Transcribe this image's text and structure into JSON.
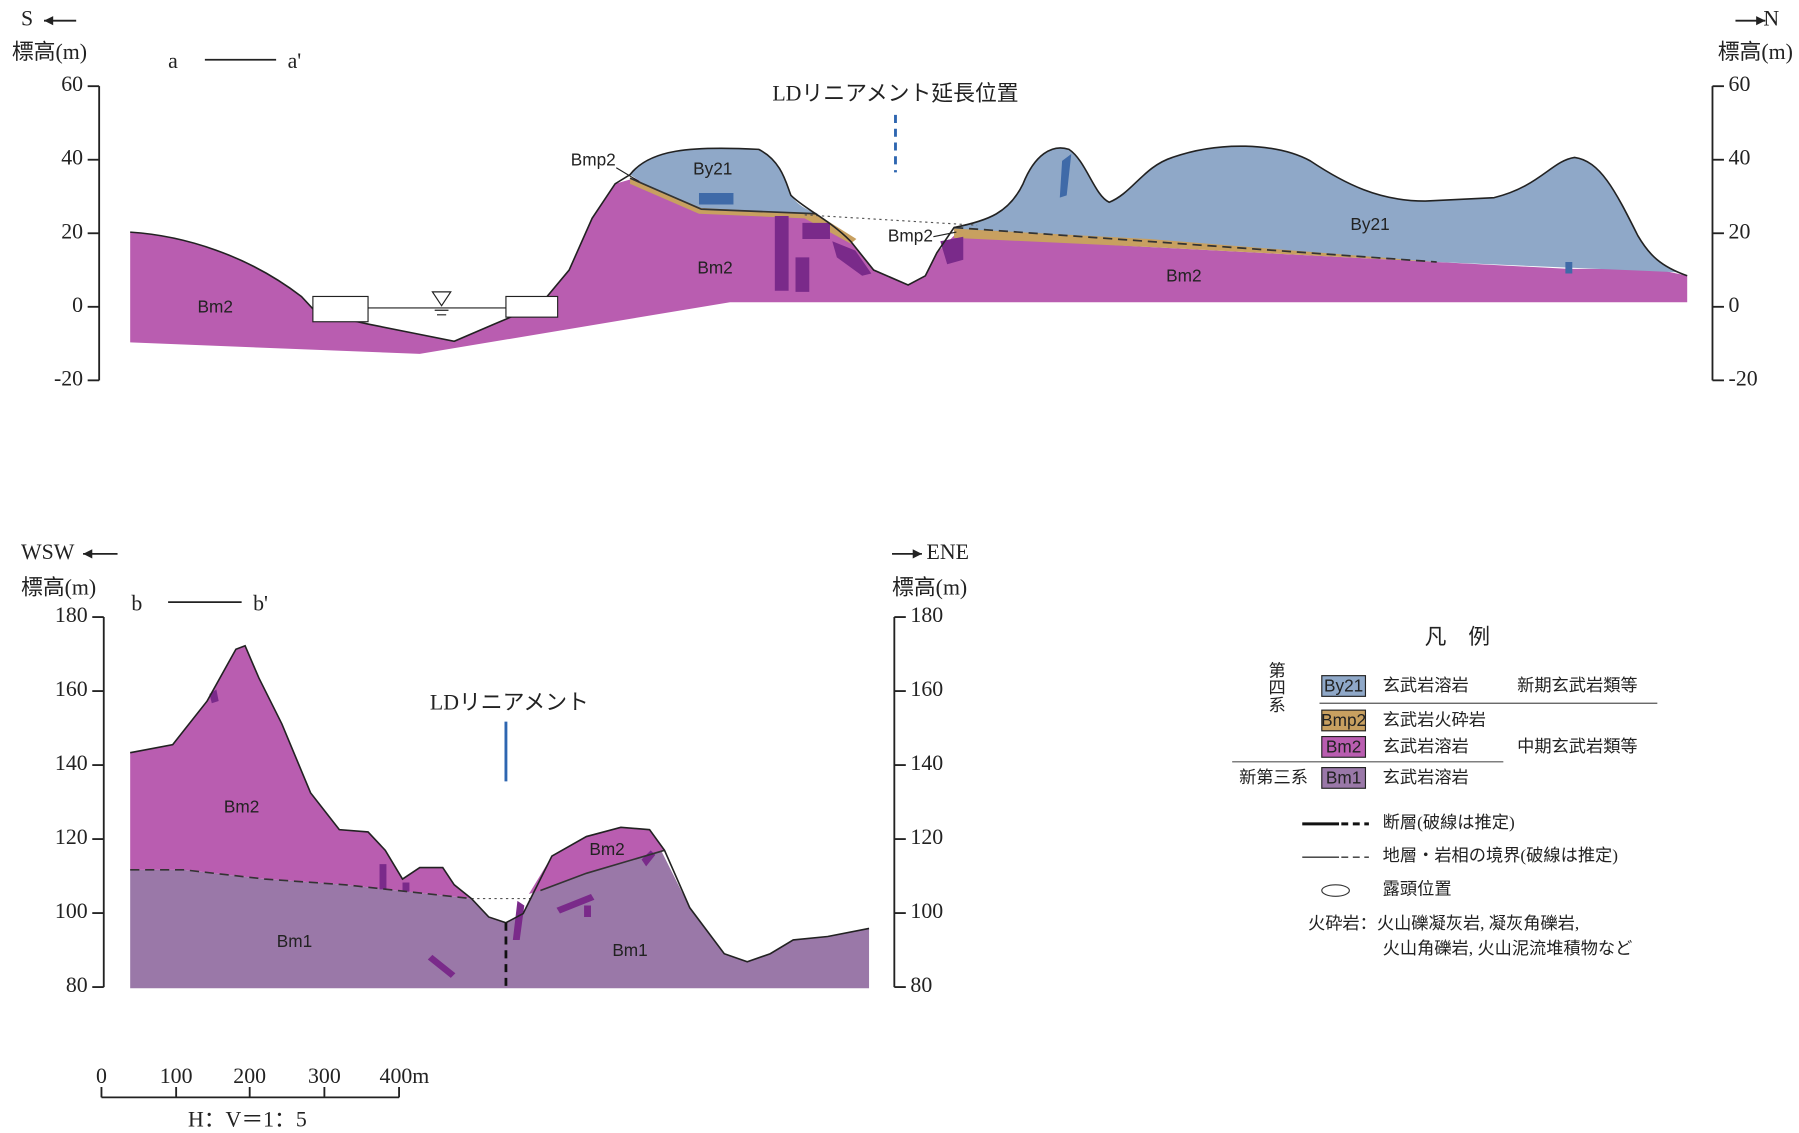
{
  "section_a": {
    "left_direction": "S",
    "right_direction": "N",
    "left_axis_label": "標高(m)",
    "right_axis_label": "標高(m)",
    "line_start": "a",
    "line_end": "a'",
    "ticks": [
      60,
      40,
      20,
      0,
      -20
    ],
    "lineament": "LDリニアメント延長位置",
    "units": [
      "Bm2",
      "Bmp2",
      "By21",
      "Bm2",
      "Bmp2",
      "By21",
      "Bm2"
    ]
  },
  "section_b": {
    "left_direction": "WSW",
    "right_direction": "ENE",
    "left_axis_label": "標高(m)",
    "right_axis_label": "標高(m)",
    "line_start": "b",
    "line_end": "b'",
    "ticks": [
      180,
      160,
      140,
      120,
      100,
      80
    ],
    "lineament": "LDリニアメント",
    "units": [
      "Bm2",
      "Bm2",
      "Bm1",
      "Bm1"
    ]
  },
  "scale_bar": {
    "labels": [
      "0",
      "100",
      "200",
      "300",
      "400m"
    ],
    "ratio": "H：V＝1：5"
  },
  "legend": {
    "title": "凡　例",
    "quaternary": "第四系",
    "neogene": "新第三系",
    "units": [
      {
        "code": "By21",
        "rock": "玄武岩溶岩",
        "group": "新期玄武岩類等"
      },
      {
        "code": "Bmp2",
        "rock": "玄武岩火砕岩"
      },
      {
        "code": "Bm2",
        "rock": "玄武岩溶岩",
        "group": "中期玄武岩類等"
      },
      {
        "code": "Bm1",
        "rock": "玄武岩溶岩"
      }
    ],
    "lines": [
      "断層(破線は推定)",
      "地層・岩相の境界(破線は推定)",
      "露頭位置"
    ],
    "note": [
      "火砕岩：火山礫凝灰岩, 凝灰角礫岩,",
      "火山角礫岩, 火山泥流堆積物など"
    ]
  }
}
